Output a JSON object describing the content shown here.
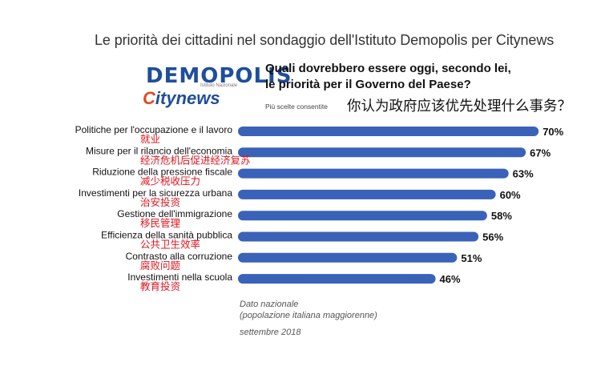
{
  "header": {
    "title": "Le priorità dei cittadini nel sondaggio dell'Istituto Demopolis per Citynews"
  },
  "logos": {
    "demopolis": "DEMOPOLIS",
    "demopolis_sub": "Istituto Nazionale",
    "citynews_c": "C",
    "citynews_rest": "itynews"
  },
  "question": {
    "line1": "Quali dovrebbero essere oggi, secondo lei,",
    "line2": "le priorità per il Governo del Paese?",
    "note": "Più scelte consentite",
    "translation_zh": "你认为政府应该优先处理什么事务？"
  },
  "chart_data": {
    "type": "bar",
    "orientation": "horizontal",
    "categories": [
      "Politiche per l'occupazione e il lavoro",
      "Misure per il rilancio dell'economia",
      "Riduzione della pressione fiscale",
      "Investimenti per la sicurezza urbana",
      "Gestione dell'immigrazione",
      "Efficienza della sanità pubblica",
      "Contrasto alla corruzione",
      "Investimenti nella scuola"
    ],
    "translations_zh": [
      "就业",
      "经济危机后促进经济复苏",
      "减少税收压力",
      "治安投资",
      "移民管理",
      "公共卫生效率",
      "腐败问题",
      "教育投资"
    ],
    "values": [
      70,
      67,
      63,
      60,
      58,
      56,
      51,
      46
    ],
    "value_labels": [
      "70%",
      "67%",
      "63%",
      "60%",
      "58%",
      "56%",
      "51%",
      "46%"
    ],
    "xlim": [
      0,
      100
    ],
    "title": "",
    "xlabel": "",
    "ylabel": ""
  },
  "footer": {
    "line1": "Dato nazionale",
    "line2": "(popolazione italiana maggiorenne)",
    "date": "settembre 2018"
  },
  "colors": {
    "bar": "#3a62b8",
    "zh_label": "#e0141e",
    "brand_blue": "#1f4e9c",
    "brand_orange": "#e04a1f"
  }
}
